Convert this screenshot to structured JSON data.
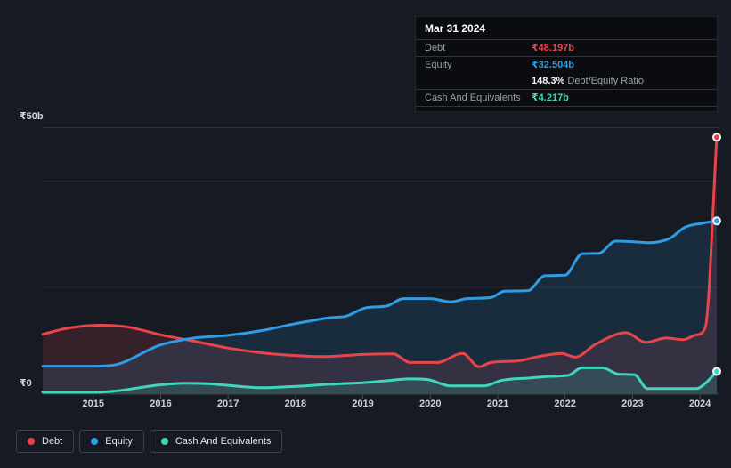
{
  "tooltip": {
    "date": "Mar 31 2024",
    "debt_label": "Debt",
    "debt_value": "₹48.197b",
    "equity_label": "Equity",
    "equity_value": "₹32.504b",
    "ratio_value": "148.3%",
    "ratio_label": " Debt/Equity Ratio",
    "cash_label": "Cash And Equivalents",
    "cash_value": "₹4.217b"
  },
  "chart_data": {
    "type": "area",
    "legend_position": "bottom-left",
    "grid": true,
    "x_axis": {
      "min": 2014.25,
      "max": 2024.25,
      "tick_labels": [
        "2015",
        "2016",
        "2017",
        "2018",
        "2019",
        "2020",
        "2021",
        "2022",
        "2023",
        "2024"
      ]
    },
    "y_axis": {
      "min": 0,
      "max": 50,
      "unit": "₹ billions",
      "labeled_ticks": [
        {
          "value": 50,
          "label": "₹50b"
        },
        {
          "value": 0,
          "label": "₹0"
        }
      ],
      "gridline_values": [
        50,
        40,
        20
      ]
    },
    "series": [
      {
        "name": "Debt",
        "color": "#e8454b",
        "points": [
          [
            2014.25,
            11.2
          ],
          [
            2014.6,
            12.3
          ],
          [
            2015.1,
            12.9
          ],
          [
            2015.5,
            12.6
          ],
          [
            2016.0,
            11.1
          ],
          [
            2016.5,
            9.9
          ],
          [
            2017.0,
            8.6
          ],
          [
            2017.5,
            7.7
          ],
          [
            2018.0,
            7.2
          ],
          [
            2018.4,
            7.0
          ],
          [
            2019.0,
            7.4
          ],
          [
            2019.45,
            7.5
          ],
          [
            2019.7,
            5.9
          ],
          [
            2020.1,
            5.9
          ],
          [
            2020.48,
            7.6
          ],
          [
            2020.72,
            5.1
          ],
          [
            2020.9,
            5.9
          ],
          [
            2021.3,
            6.2
          ],
          [
            2021.6,
            7.0
          ],
          [
            2021.95,
            7.6
          ],
          [
            2022.15,
            6.9
          ],
          [
            2022.45,
            9.3
          ],
          [
            2022.9,
            11.5
          ],
          [
            2023.2,
            9.7
          ],
          [
            2023.5,
            10.5
          ],
          [
            2023.75,
            10.2
          ],
          [
            2023.95,
            11.1
          ],
          [
            2024.08,
            12.5
          ],
          [
            2024.25,
            48.197
          ]
        ]
      },
      {
        "name": "Equity",
        "color": "#2e9de6",
        "points": [
          [
            2014.25,
            5.2
          ],
          [
            2015.0,
            5.2
          ],
          [
            2015.3,
            5.4
          ],
          [
            2016.0,
            9.2
          ],
          [
            2016.5,
            10.5
          ],
          [
            2017.0,
            11.0
          ],
          [
            2017.5,
            11.9
          ],
          [
            2018.0,
            13.2
          ],
          [
            2018.5,
            14.3
          ],
          [
            2018.75,
            14.6
          ],
          [
            2019.05,
            16.2
          ],
          [
            2019.35,
            16.5
          ],
          [
            2019.6,
            17.9
          ],
          [
            2020.0,
            17.9
          ],
          [
            2020.3,
            17.3
          ],
          [
            2020.55,
            17.9
          ],
          [
            2020.9,
            18.1
          ],
          [
            2021.1,
            19.3
          ],
          [
            2021.45,
            19.4
          ],
          [
            2021.7,
            22.2
          ],
          [
            2022.0,
            22.3
          ],
          [
            2022.25,
            26.3
          ],
          [
            2022.5,
            26.4
          ],
          [
            2022.75,
            28.7
          ],
          [
            2023.0,
            28.6
          ],
          [
            2023.25,
            28.4
          ],
          [
            2023.55,
            29.2
          ],
          [
            2023.78,
            31.3
          ],
          [
            2024.05,
            32.1
          ],
          [
            2024.25,
            32.504
          ]
        ]
      },
      {
        "name": "Cash And Equivalents",
        "color": "#41d6ba",
        "points": [
          [
            2014.25,
            0.3
          ],
          [
            2015.0,
            0.3
          ],
          [
            2015.3,
            0.5
          ],
          [
            2016.0,
            1.7
          ],
          [
            2016.35,
            2.0
          ],
          [
            2016.7,
            1.9
          ],
          [
            2017.0,
            1.6
          ],
          [
            2017.5,
            1.15
          ],
          [
            2018.0,
            1.4
          ],
          [
            2018.5,
            1.8
          ],
          [
            2019.0,
            2.1
          ],
          [
            2019.3,
            2.4
          ],
          [
            2019.69,
            2.8
          ],
          [
            2019.95,
            2.7
          ],
          [
            2020.3,
            1.5
          ],
          [
            2020.8,
            1.5
          ],
          [
            2021.05,
            2.5
          ],
          [
            2021.5,
            3.0
          ],
          [
            2021.8,
            3.3
          ],
          [
            2022.05,
            3.5
          ],
          [
            2022.25,
            4.9
          ],
          [
            2022.55,
            4.9
          ],
          [
            2022.8,
            3.7
          ],
          [
            2023.03,
            3.6
          ],
          [
            2023.22,
            1.0
          ],
          [
            2023.95,
            1.0
          ],
          [
            2024.1,
            2.2
          ],
          [
            2024.25,
            4.217
          ]
        ]
      }
    ]
  }
}
